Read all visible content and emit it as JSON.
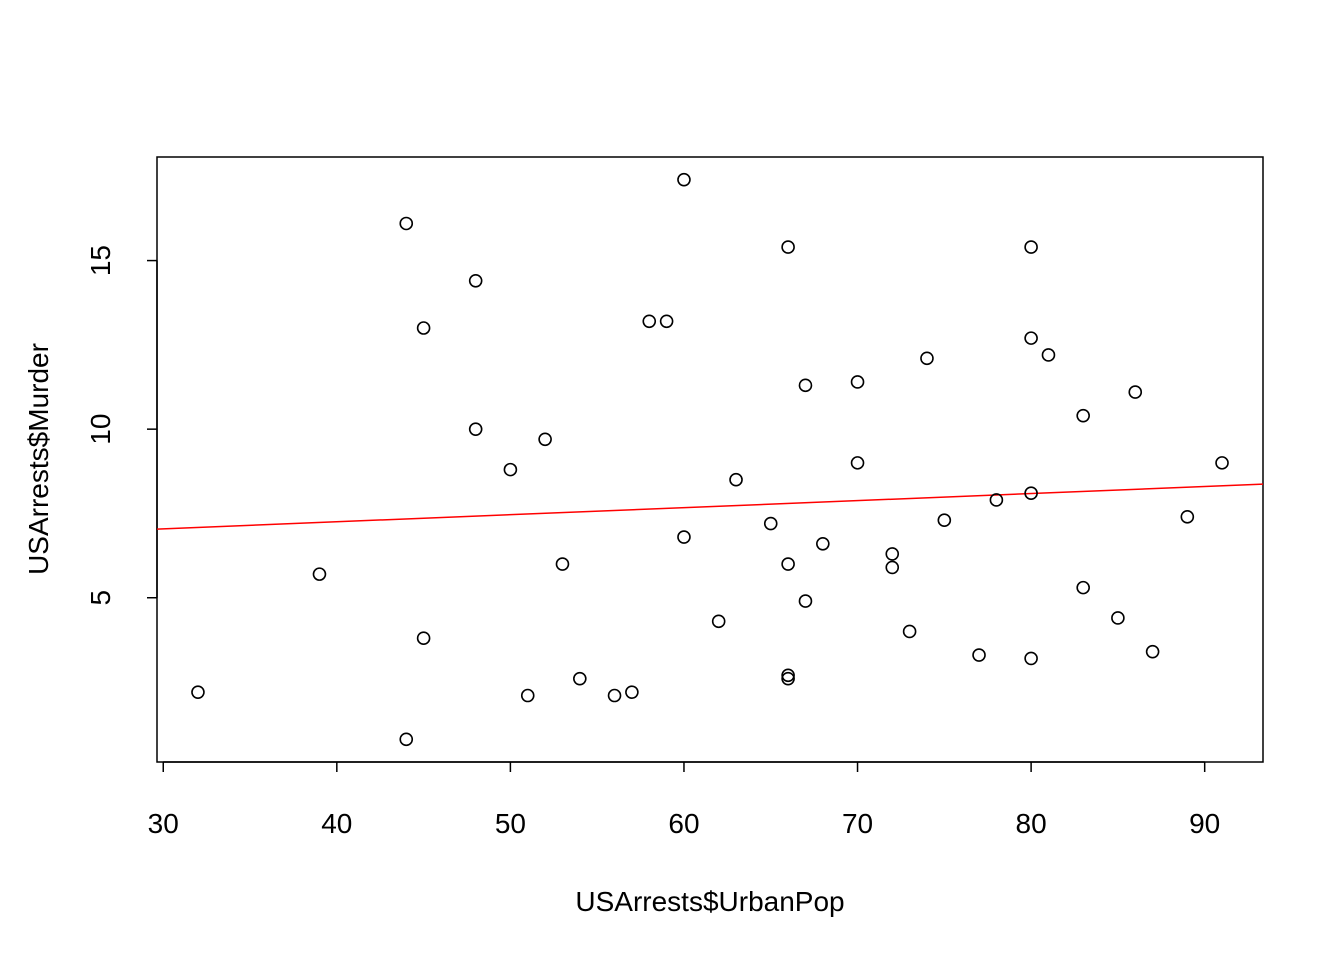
{
  "chart_data": {
    "type": "scatter",
    "title": "",
    "xlabel": "USArrests$UrbanPop",
    "ylabel": "USArrests$Murder",
    "xlim": [
      29.64,
      93.36
    ],
    "ylim": [
      0.128,
      18.072
    ],
    "x_ticks": [
      30,
      40,
      50,
      60,
      70,
      80,
      90
    ],
    "y_ticks": [
      5,
      10,
      15
    ],
    "grid": false,
    "legend": "none",
    "colors": {
      "points": "#000000",
      "regression_line": "#ff0000",
      "box": "#000000"
    },
    "series": [
      {
        "x": [
          58,
          48,
          80,
          50,
          91,
          78,
          77,
          72,
          80,
          60,
          83,
          54,
          83,
          65,
          57,
          66,
          52,
          66,
          51,
          67,
          85,
          74,
          66,
          44,
          70,
          53,
          62,
          81,
          56,
          89,
          70,
          86,
          45,
          44,
          75,
          68,
          67,
          72,
          87,
          48,
          45,
          59,
          80,
          80,
          32,
          63,
          73,
          39,
          66,
          60
        ],
        "y": [
          13.2,
          10.0,
          8.1,
          8.8,
          9.0,
          7.9,
          3.3,
          5.9,
          15.4,
          17.4,
          5.3,
          2.6,
          10.4,
          7.2,
          2.2,
          6.0,
          9.7,
          15.4,
          2.1,
          11.3,
          4.4,
          12.1,
          2.7,
          16.1,
          9.0,
          6.0,
          4.3,
          12.2,
          2.1,
          7.4,
          11.4,
          11.1,
          13.0,
          0.8,
          7.3,
          6.6,
          4.9,
          6.3,
          3.4,
          14.4,
          3.8,
          13.2,
          12.7,
          3.2,
          2.2,
          8.5,
          4.0,
          5.7,
          2.6,
          6.8
        ]
      }
    ],
    "regression_line": {
      "intercept": 6.41594,
      "slope": 0.02093
    }
  }
}
